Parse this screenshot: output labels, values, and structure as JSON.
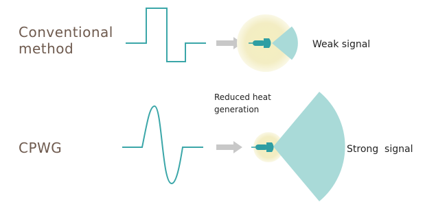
{
  "rows": [
    {
      "label": [
        "Conventional",
        "method"
      ],
      "signal": "Weak signal"
    },
    {
      "label": [
        "CPWG"
      ],
      "note": [
        "Reduced heat",
        "generation"
      ],
      "signal": "Strong  signal"
    }
  ]
}
